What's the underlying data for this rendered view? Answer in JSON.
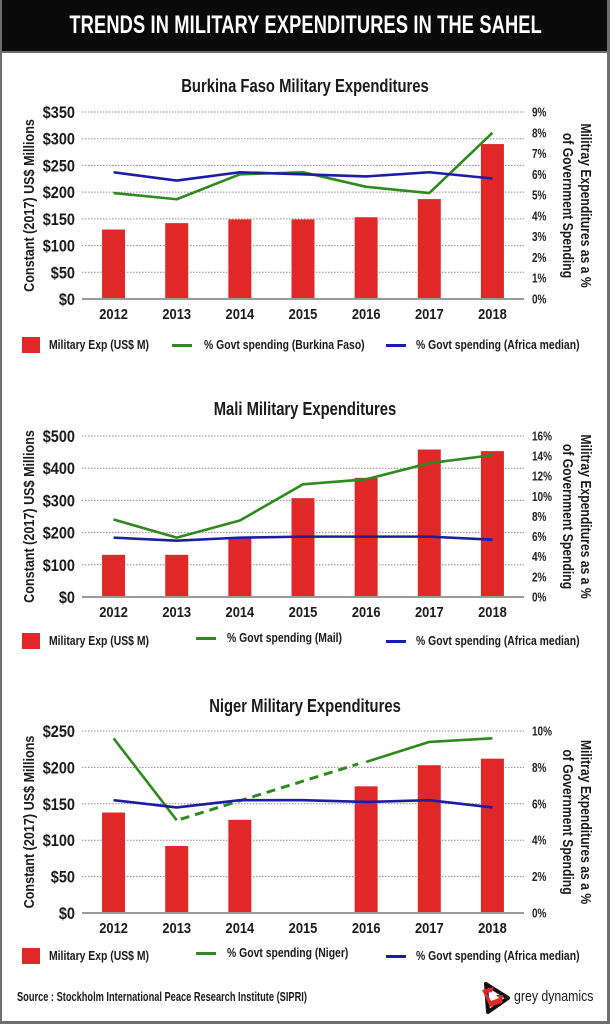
{
  "header": {
    "title": "TRENDS IN MILITARY EXPENDITURES IN THE SAHEL"
  },
  "chart_data": [
    {
      "type": "bar",
      "title": "Burkina Faso Military Expenditures",
      "categories": [
        "2012",
        "2013",
        "2014",
        "2015",
        "2016",
        "2017",
        "2018"
      ],
      "ylabel": "Constant (2017) US$ Millions",
      "ylabel_right": [
        "Militray Expenditures as a %",
        "of Government Spending"
      ],
      "ylim": [
        0,
        350
      ],
      "yticks": [
        0,
        50,
        100,
        150,
        200,
        250,
        300,
        350
      ],
      "ytick_labels": [
        "$0",
        "$50",
        "$100",
        "$150",
        "$200",
        "$250",
        "$300",
        "$350"
      ],
      "ylim_right": [
        0,
        9
      ],
      "yticks_right": [
        0,
        1,
        2,
        3,
        4,
        5,
        6,
        7,
        8,
        9
      ],
      "ytick_labels_right": [
        "0%",
        "1%",
        "2%",
        "3%",
        "4%",
        "5%",
        "6%",
        "7%",
        "8%",
        "9%"
      ],
      "grid": true,
      "legend": "bottom",
      "series": [
        {
          "name": "Military Exp (US$ M)",
          "type": "bar",
          "axis": "left",
          "color": "#e02828",
          "values": [
            130,
            142,
            149,
            149,
            153,
            187,
            290
          ]
        },
        {
          "name": "% Govt spending (Burkina Faso)",
          "type": "line",
          "axis": "right",
          "color": "#2e8a1e",
          "values": [
            5.1,
            4.8,
            6.0,
            6.1,
            5.4,
            5.1,
            8.0
          ]
        },
        {
          "name": "% Govt spending (Africa median)",
          "type": "line",
          "axis": "right",
          "color": "#1c1ca8",
          "values": [
            6.1,
            5.7,
            6.1,
            6.0,
            5.9,
            6.1,
            5.8
          ]
        }
      ]
    },
    {
      "type": "bar",
      "title": "Mali Military Expenditures",
      "categories": [
        "2012",
        "2013",
        "2014",
        "2015",
        "2016",
        "2017",
        "2018"
      ],
      "ylabel": "Constant (2017) US$ Millions",
      "ylabel_right": [
        "Militray Expenditures as a %",
        "of Government Spending"
      ],
      "ylim": [
        0,
        500
      ],
      "yticks": [
        0,
        100,
        200,
        300,
        400,
        500
      ],
      "ytick_labels": [
        "$0",
        "$100",
        "$200",
        "$300",
        "$400",
        "$500"
      ],
      "ylim_right": [
        0,
        16
      ],
      "yticks_right": [
        0,
        2,
        4,
        6,
        8,
        10,
        12,
        14,
        16
      ],
      "ytick_labels_right": [
        "0%",
        "2%",
        "4%",
        "6%",
        "8%",
        "10%",
        "12%",
        "14%",
        "16%"
      ],
      "grid": true,
      "legend": "bottom",
      "series": [
        {
          "name": "Military Exp (US$ M)",
          "type": "bar",
          "axis": "left",
          "color": "#e02828",
          "values": [
            131,
            131,
            184,
            307,
            370,
            458,
            453
          ]
        },
        {
          "name": "% Govt spending (Mail)",
          "type": "line",
          "axis": "right",
          "color": "#2e8a1e",
          "values": [
            7.7,
            5.9,
            7.6,
            11.2,
            11.7,
            13.3,
            14.1
          ]
        },
        {
          "name": "% Govt spending (Africa median)",
          "type": "line",
          "axis": "right",
          "color": "#1c1ca8",
          "values": [
            5.9,
            5.6,
            5.9,
            6.0,
            6.0,
            6.0,
            5.7
          ]
        }
      ]
    },
    {
      "type": "bar",
      "title": "Niger Military Expenditures",
      "categories": [
        "2012",
        "2013",
        "2014",
        "2015",
        "2016",
        "2017",
        "2018"
      ],
      "ylabel": "Constant (2017) US$ Millions",
      "ylabel_right": [
        "Militray Expenditures as a %",
        "of Government Spending"
      ],
      "ylim": [
        0,
        250
      ],
      "yticks": [
        0,
        50,
        100,
        150,
        200,
        250
      ],
      "ytick_labels": [
        "$0",
        "$50",
        "$100",
        "$150",
        "$200",
        "$250"
      ],
      "ylim_right": [
        0,
        10
      ],
      "yticks_right": [
        0,
        2,
        4,
        6,
        8,
        10
      ],
      "ytick_labels_right": [
        "0%",
        "2%",
        "4%",
        "6%",
        "8%",
        "10%"
      ],
      "grid": true,
      "legend": "bottom",
      "series": [
        {
          "name": "Military Exp (US$ M)",
          "type": "bar",
          "axis": "left",
          "color": "#e02828",
          "values": [
            138,
            92,
            128,
            null,
            174,
            203,
            212
          ]
        },
        {
          "name": "% Govt spending (Niger)",
          "type": "line",
          "axis": "right",
          "color": "#2e8a1e",
          "values": [
            9.6,
            5.1,
            null,
            null,
            8.3,
            9.4,
            9.6
          ],
          "dashed_between": [
            "2013",
            "2016"
          ]
        },
        {
          "name": "% Govt spending (Africa median)",
          "type": "line",
          "axis": "right",
          "color": "#1c1ca8",
          "values": [
            6.2,
            5.8,
            6.2,
            6.2,
            6.1,
            6.2,
            5.8
          ]
        }
      ]
    }
  ],
  "footer": {
    "source": "Source : Stockholm International Peace Research Institute (SIPRI)",
    "logo_text": "grey dynamics"
  }
}
